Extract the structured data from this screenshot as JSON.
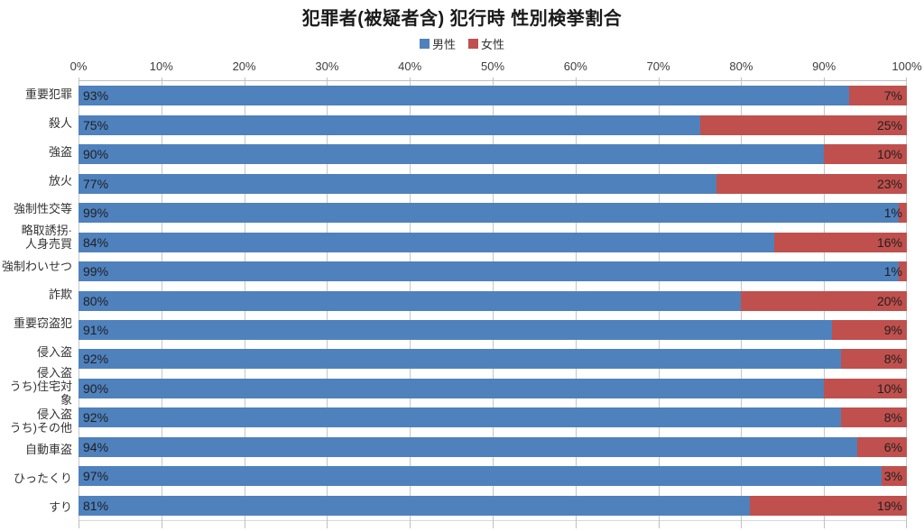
{
  "chart_data": {
    "type": "bar",
    "orientation": "horizontal",
    "stacked": true,
    "unit": "percent",
    "title": "犯罪者(被疑者含) 犯行時 性別検挙割合",
    "legend_position": "top",
    "grid": true,
    "data_labels": true,
    "categories": [
      "重要犯罪",
      "殺人",
      "強盗",
      "放火",
      "強制性交等",
      "略取誘拐·\n人身売買",
      "強制わいせつ",
      "詐欺",
      "重要窃盗犯",
      "侵入盗",
      "侵入盗\nうち)住宅対象",
      "侵入盗\nうち)その他",
      "自動車盗",
      "ひったくり",
      "すり"
    ],
    "series": [
      {
        "name": "男性",
        "color": "#4F81BD",
        "values": [
          93,
          75,
          90,
          77,
          99,
          84,
          99,
          80,
          91,
          92,
          90,
          92,
          94,
          97,
          81
        ]
      },
      {
        "name": "女性",
        "color": "#C0504D",
        "values": [
          7,
          25,
          10,
          23,
          1,
          16,
          1,
          20,
          9,
          8,
          10,
          8,
          6,
          3,
          19
        ]
      }
    ],
    "x_axis": {
      "min": 0,
      "max": 100,
      "tick_labels": [
        "0%",
        "10%",
        "20%",
        "30%",
        "40%",
        "50%",
        "60%",
        "70%",
        "80%",
        "90%",
        "100%"
      ]
    },
    "colors": {
      "male": "#4F81BD",
      "female": "#C0504D",
      "gridline": "#C6C6C6",
      "label_text": "#1F1F1F"
    }
  }
}
